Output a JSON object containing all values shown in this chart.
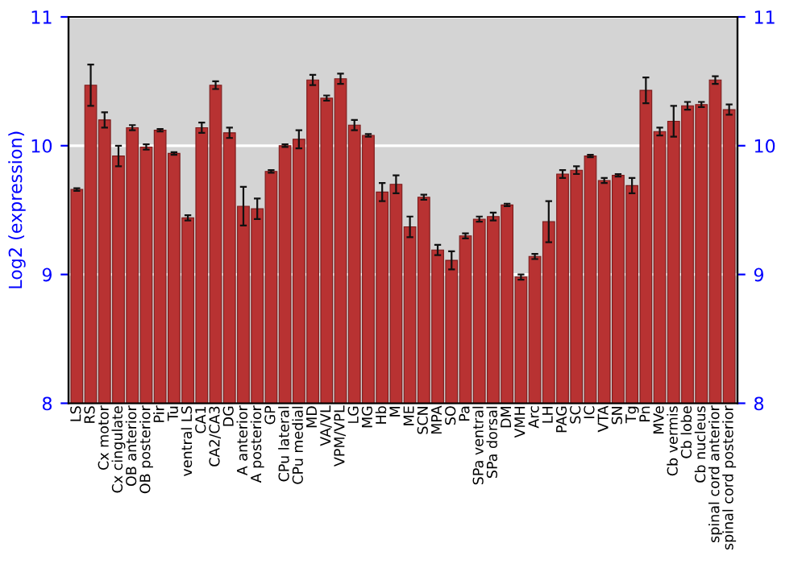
{
  "chart_data": {
    "type": "bar",
    "ylabel": "Log2 (expression)",
    "categories": [
      "LS",
      "RS",
      "Cx motor",
      "Cx cingulate",
      "OB anterior",
      "OB posterior",
      "Pir",
      "Tu",
      "ventral LS",
      "CA1",
      "CA2/CA3",
      "DG",
      "A anterior",
      "A posterior",
      "GP",
      "CPu lateral",
      "CPu medial",
      "MD",
      "VA/VL",
      "VPM/VPL",
      "LG",
      "MG",
      "Hb",
      "M",
      "ME",
      "SCN",
      "MPA",
      "SO",
      "Pa",
      "SPa ventral",
      "SPa dorsal",
      "DM",
      "VMH",
      "Arc",
      "LH",
      "PAG",
      "SC",
      "IC",
      "VTA",
      "SN",
      "Tg",
      "Pn",
      "MVe",
      "Cb vermis",
      "Cb lobe",
      "Cb nucleus",
      "spinal cord anterior",
      "spinal cord posterior"
    ],
    "values": [
      9.66,
      10.47,
      10.2,
      9.92,
      10.14,
      9.99,
      10.12,
      9.94,
      9.44,
      10.14,
      10.47,
      10.1,
      9.53,
      9.51,
      9.8,
      10.0,
      10.05,
      10.51,
      10.37,
      10.52,
      10.16,
      10.08,
      9.64,
      9.7,
      9.37,
      9.6,
      9.19,
      9.11,
      9.3,
      9.43,
      9.45,
      9.54,
      8.98,
      9.14,
      9.41,
      9.78,
      9.81,
      9.92,
      9.73,
      9.77,
      9.69,
      10.43,
      10.11,
      10.19,
      10.31,
      10.32,
      10.51,
      10.28
    ],
    "errors": [
      0.01,
      0.16,
      0.06,
      0.08,
      0.02,
      0.02,
      0.01,
      0.01,
      0.02,
      0.04,
      0.03,
      0.04,
      0.15,
      0.08,
      0.01,
      0.01,
      0.07,
      0.04,
      0.02,
      0.04,
      0.04,
      0.01,
      0.07,
      0.07,
      0.08,
      0.02,
      0.04,
      0.07,
      0.02,
      0.02,
      0.03,
      0.01,
      0.02,
      0.02,
      0.16,
      0.03,
      0.03,
      0.01,
      0.02,
      0.01,
      0.06,
      0.1,
      0.03,
      0.12,
      0.03,
      0.02,
      0.03,
      0.04
    ],
    "color": "#b83232",
    "ylim": [
      8,
      11
    ],
    "yticks": [
      8,
      9,
      10,
      11
    ],
    "y2lim": [
      8,
      11
    ],
    "y2ticks": [
      8,
      9,
      10,
      11
    ],
    "grid": "y"
  }
}
